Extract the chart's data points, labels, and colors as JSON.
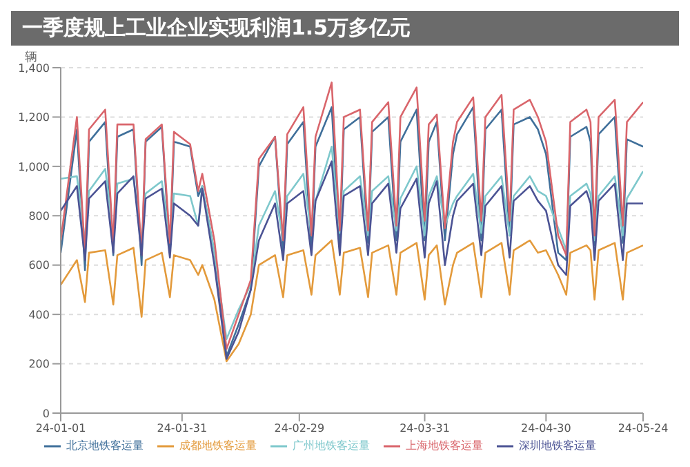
{
  "chart_data": {
    "type": "line",
    "title": "一季度规上工业企业实现利润1.5万多亿元",
    "ylabel": "辆",
    "x": [
      "--01-01",
      "--01-05",
      "--01-07",
      "--01-08",
      "--01-12",
      "--01-14",
      "--01-15",
      "--01-19",
      "--01-21",
      "--01-22",
      "--01-26",
      "--01-28",
      "--01-29",
      "--02-02",
      "--02-04",
      "--02-05",
      "--02-08",
      "--02-11",
      "--02-14",
      "--02-17",
      "--02-19",
      "--02-23",
      "--02-25",
      "--02-26",
      "--03-01",
      "--03-03",
      "--03-04",
      "--03-08",
      "--03-10",
      "--03-11",
      "--03-15",
      "--03-17",
      "--03-18",
      "--03-22",
      "--03-24",
      "--03-25",
      "--03-29",
      "--03-31",
      "--04-01",
      "--04-03",
      "--04-05",
      "--04-07",
      "--04-08",
      "--04-12",
      "--04-14",
      "--04-15",
      "--04-19",
      "--04-21",
      "--04-22",
      "--04-26",
      "--04-28",
      "--04-30",
      "--05-03",
      "--05-05",
      "--05-06",
      "--05-10",
      "--05-11",
      "--05-12",
      "--05-13",
      "--05-17",
      "--05-19",
      "--05-20",
      "--05-24"
    ],
    "series": [
      {
        "name": "北京地铁客运量",
        "color": "#3f6f9a",
        "values": [
          650,
          1150,
          580,
          1100,
          1180,
          640,
          1120,
          1150,
          600,
          1100,
          1160,
          650,
          1100,
          1080,
          880,
          920,
          650,
          230,
          360,
          500,
          1000,
          1120,
          650,
          1090,
          1180,
          660,
          1080,
          1240,
          680,
          1150,
          1200,
          690,
          1140,
          1200,
          700,
          1100,
          1230,
          700,
          1100,
          1180,
          700,
          1050,
          1130,
          1240,
          700,
          1150,
          1230,
          720,
          1170,
          1200,
          1150,
          1050,
          650,
          620,
          1120,
          1160,
          1100,
          680,
          1130,
          1200,
          690,
          1110,
          1080
        ]
      },
      {
        "name": "成都地铁客运量",
        "color": "#e39a3b",
        "values": [
          520,
          620,
          450,
          650,
          660,
          440,
          640,
          670,
          390,
          620,
          650,
          470,
          640,
          620,
          560,
          600,
          460,
          210,
          280,
          400,
          600,
          640,
          470,
          640,
          660,
          480,
          640,
          700,
          480,
          650,
          670,
          470,
          650,
          680,
          480,
          650,
          690,
          460,
          640,
          680,
          440,
          600,
          650,
          690,
          470,
          650,
          690,
          480,
          660,
          700,
          650,
          660,
          560,
          480,
          650,
          680,
          660,
          460,
          660,
          690,
          460,
          650,
          680
        ]
      },
      {
        "name": "广州地铁客运量",
        "color": "#7ec8cc",
        "values": [
          950,
          960,
          700,
          900,
          990,
          720,
          930,
          950,
          700,
          890,
          940,
          700,
          890,
          880,
          760,
          920,
          650,
          300,
          420,
          520,
          760,
          900,
          700,
          880,
          970,
          720,
          860,
          1080,
          730,
          900,
          960,
          720,
          900,
          960,
          740,
          870,
          1000,
          720,
          880,
          960,
          760,
          850,
          880,
          970,
          730,
          880,
          960,
          720,
          880,
          960,
          900,
          880,
          750,
          660,
          880,
          930,
          890,
          700,
          880,
          960,
          720,
          870,
          980
        ]
      },
      {
        "name": "上海地铁客运量",
        "color": "#d9656b",
        "values": [
          700,
          1200,
          640,
          1150,
          1230,
          680,
          1170,
          1170,
          640,
          1110,
          1170,
          690,
          1140,
          1090,
          900,
          970,
          700,
          260,
          400,
          540,
          1030,
          1120,
          700,
          1130,
          1240,
          720,
          1120,
          1340,
          740,
          1200,
          1230,
          740,
          1180,
          1260,
          760,
          1200,
          1320,
          780,
          1170,
          1210,
          750,
          1100,
          1180,
          1280,
          780,
          1200,
          1290,
          780,
          1230,
          1270,
          1200,
          1100,
          720,
          640,
          1180,
          1230,
          1180,
          720,
          1200,
          1270,
          760,
          1180,
          1260
        ]
      },
      {
        "name": "深圳地铁客运量",
        "color": "#4b5394",
        "values": [
          820,
          920,
          620,
          870,
          940,
          650,
          890,
          960,
          640,
          870,
          910,
          630,
          850,
          800,
          760,
          910,
          600,
          220,
          330,
          500,
          700,
          850,
          620,
          850,
          900,
          640,
          860,
          1020,
          640,
          880,
          920,
          640,
          850,
          930,
          650,
          830,
          950,
          630,
          850,
          940,
          600,
          800,
          860,
          930,
          640,
          840,
          920,
          630,
          860,
          920,
          860,
          820,
          600,
          560,
          840,
          900,
          850,
          620,
          860,
          930,
          620,
          850,
          850
        ]
      }
    ],
    "xlim": [
      "--01-01",
      "--05-24"
    ],
    "xticks": [
      {
        "value": "--01-01",
        "label": "24-01-01"
      },
      {
        "value": "--01-31",
        "label": "24-01-31"
      },
      {
        "value": "--02-29",
        "label": "24-02-29"
      },
      {
        "value": "--03-31",
        "label": "24-03-31"
      },
      {
        "value": "--04-30",
        "label": "24-04-30"
      },
      {
        "value": "--05-24",
        "label": "24-05-24"
      }
    ],
    "ylim": [
      0,
      1400
    ],
    "yticks": [
      0,
      200,
      400,
      600,
      800,
      {
        "value": 1000,
        "label": "1,000"
      },
      {
        "value": 1200,
        "label": "1,200"
      },
      {
        "value": 1400,
        "label": "1,400"
      }
    ],
    "grid": "y",
    "legend": "bottom",
    "marker": "none",
    "line_style": "solid"
  }
}
